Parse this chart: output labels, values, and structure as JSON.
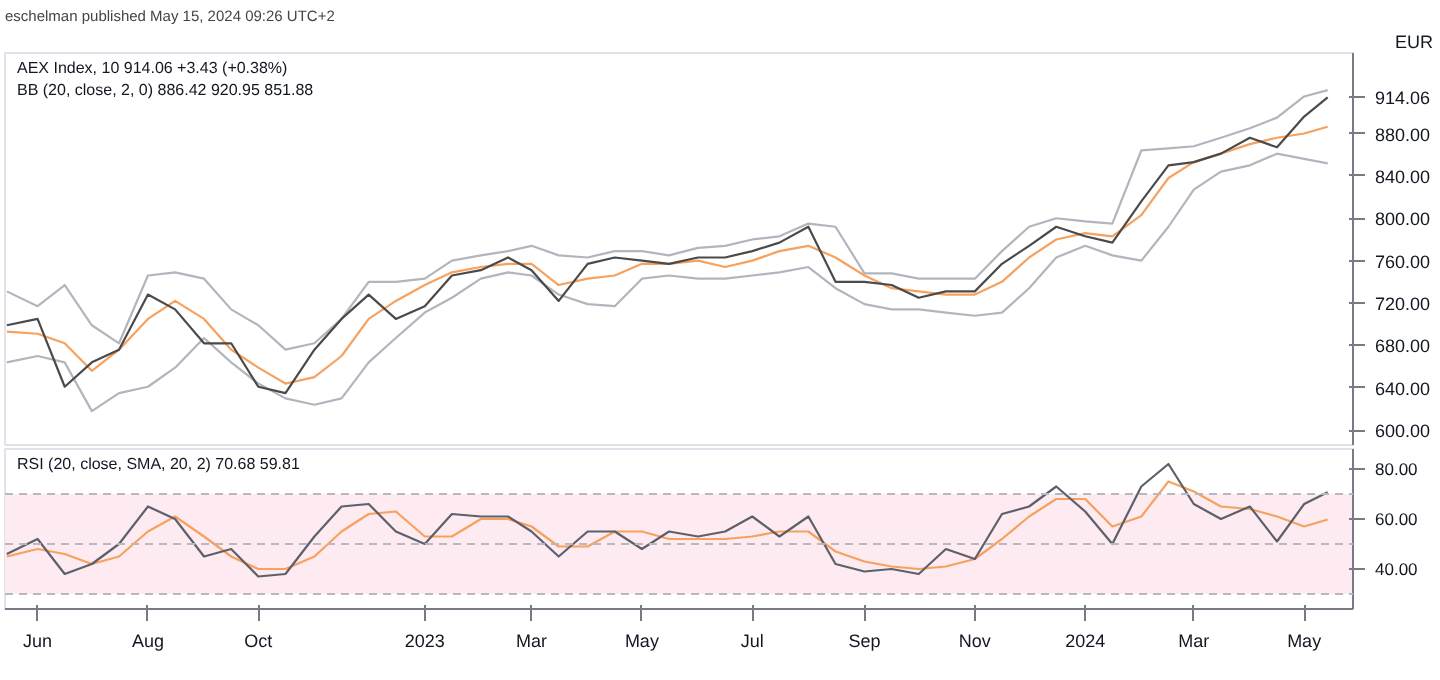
{
  "chart_data": [
    {
      "type": "line",
      "title": "eschelman published May 15, 2024 09:26 UTC+2",
      "ylabel": "EUR",
      "annotations": [
        "AEX Index, 10 914.06 +3.43 (+0.38%)",
        "BB (20, close, 2, 0) 886.42 920.95 851.88"
      ],
      "x": [
        "2022-05-15",
        "2022-06-01",
        "2022-06-16",
        "2022-07-01",
        "2022-07-16",
        "2022-08-01",
        "2022-08-16",
        "2022-09-01",
        "2022-09-16",
        "2022-10-01",
        "2022-10-16",
        "2022-11-01",
        "2022-11-16",
        "2022-12-01",
        "2022-12-16",
        "2023-01-01",
        "2023-01-16",
        "2023-02-01",
        "2023-02-16",
        "2023-03-01",
        "2023-03-16",
        "2023-04-01",
        "2023-04-16",
        "2023-05-01",
        "2023-05-16",
        "2023-06-01",
        "2023-06-16",
        "2023-07-01",
        "2023-07-16",
        "2023-08-01",
        "2023-08-16",
        "2023-09-01",
        "2023-09-16",
        "2023-10-01",
        "2023-10-16",
        "2023-11-01",
        "2023-11-16",
        "2023-12-01",
        "2023-12-16",
        "2024-01-01",
        "2024-01-16",
        "2024-02-01",
        "2024-02-16",
        "2024-03-01",
        "2024-03-16",
        "2024-04-01",
        "2024-04-16",
        "2024-05-01",
        "2024-05-14"
      ],
      "series": [
        {
          "color": "#b2b5be",
          "values": [
            731,
            717,
            737,
            699,
            682,
            746,
            749,
            743,
            714,
            699,
            676,
            682,
            705,
            740,
            740,
            743,
            760,
            765,
            769,
            774,
            765,
            763,
            769,
            769,
            765,
            772,
            774,
            780,
            783,
            795,
            792,
            748,
            748,
            743,
            743,
            743,
            769,
            792,
            800,
            797,
            795,
            864,
            866,
            868,
            876,
            885,
            895,
            915,
            920.95
          ]
        },
        {
          "color": "#b2b5be",
          "values": [
            664,
            670,
            664,
            618,
            635,
            641,
            659,
            687,
            664,
            644,
            630,
            624,
            630,
            664,
            687,
            711,
            725,
            743,
            749,
            746,
            728,
            719,
            717,
            743,
            746,
            743,
            743,
            746,
            749,
            754,
            734,
            719,
            714,
            714,
            711,
            708,
            711,
            734,
            763,
            774,
            765,
            760,
            792,
            827,
            844,
            850,
            861,
            856,
            851.88
          ]
        },
        {
          "color": "#f7a15e",
          "values": [
            693,
            691,
            682,
            656,
            676,
            705,
            722,
            705,
            676,
            659,
            644,
            650,
            670,
            705,
            722,
            737,
            749,
            754,
            757,
            757,
            737,
            743,
            746,
            757,
            757,
            760,
            754,
            760,
            769,
            774,
            763,
            746,
            734,
            731,
            728,
            728,
            740,
            763,
            780,
            786,
            783,
            803,
            838,
            853,
            861,
            870,
            876,
            880,
            886.42
          ]
        },
        {
          "color": "#4a4a4a",
          "values": [
            699,
            705,
            641,
            664,
            676,
            728,
            714,
            682,
            682,
            641,
            635,
            676,
            705,
            728,
            705,
            717,
            746,
            751,
            763,
            751,
            722,
            757,
            763,
            760,
            757,
            763,
            763,
            769,
            777,
            792,
            740,
            740,
            737,
            725,
            731,
            731,
            757,
            774,
            792,
            783,
            777,
            816,
            850,
            853,
            861,
            876,
            867,
            896,
            914.06
          ]
        }
      ],
      "xlim": [
        "2022-05-14",
        "2024-05-28"
      ],
      "ylim": [
        586,
        956
      ],
      "yticks": [
        {
          "value": 600,
          "label": "600.00"
        },
        {
          "value": 640,
          "label": "640.00"
        },
        {
          "value": 680,
          "label": "680.00"
        },
        {
          "value": 720,
          "label": "720.00"
        },
        {
          "value": 760,
          "label": "760.00"
        },
        {
          "value": 800,
          "label": "800.00"
        },
        {
          "value": 840,
          "label": "840.00"
        },
        {
          "value": 880,
          "label": "880.00"
        },
        {
          "value": 914.06,
          "label": "914.06"
        }
      ],
      "tick_labels": "y",
      "grid": false
    },
    {
      "type": "line",
      "annotations": [
        "RSI (20, close, SMA, 20, 2) 70.68 59.81"
      ],
      "x": [
        "2022-05-15",
        "2022-06-01",
        "2022-06-16",
        "2022-07-01",
        "2022-07-16",
        "2022-08-01",
        "2022-08-16",
        "2022-09-01",
        "2022-09-16",
        "2022-10-01",
        "2022-10-16",
        "2022-11-01",
        "2022-11-16",
        "2022-12-01",
        "2022-12-16",
        "2023-01-01",
        "2023-01-16",
        "2023-02-01",
        "2023-02-16",
        "2023-03-01",
        "2023-03-16",
        "2023-04-01",
        "2023-04-16",
        "2023-05-01",
        "2023-05-16",
        "2023-06-01",
        "2023-06-16",
        "2023-07-01",
        "2023-07-16",
        "2023-08-01",
        "2023-08-16",
        "2023-09-01",
        "2023-09-16",
        "2023-10-01",
        "2023-10-16",
        "2023-11-01",
        "2023-11-16",
        "2023-12-01",
        "2023-12-16",
        "2024-01-01",
        "2024-01-16",
        "2024-02-01",
        "2024-02-16",
        "2024-03-01",
        "2024-03-16",
        "2024-04-01",
        "2024-04-16",
        "2024-05-01",
        "2024-05-14"
      ],
      "series": [
        {
          "color": "#f7a15e",
          "values": [
            45,
            48,
            46,
            42,
            45,
            55,
            61,
            53,
            45,
            40,
            40,
            45,
            55,
            62,
            63,
            53,
            53,
            60,
            60,
            57,
            49,
            49,
            55,
            55,
            52,
            52,
            52,
            53,
            55,
            55,
            47,
            43,
            41,
            40,
            41,
            44,
            52,
            61,
            68,
            68,
            57,
            61,
            75,
            71,
            65,
            64,
            61,
            57,
            59.81
          ]
        },
        {
          "color": "#5d606b",
          "values": [
            46,
            52,
            38,
            42,
            50,
            65,
            60,
            45,
            48,
            37,
            38,
            53,
            65,
            66,
            55,
            50,
            62,
            61,
            61,
            55,
            45,
            55,
            55,
            48,
            55,
            53,
            55,
            61,
            53,
            61,
            42,
            39,
            40,
            38,
            48,
            44,
            62,
            65,
            73,
            63,
            50,
            73,
            82,
            66,
            60,
            65,
            51,
            66,
            70.68
          ]
        }
      ],
      "bands": [
        {
          "axis": "y",
          "from": 30,
          "to": 70,
          "color": "#fdebf1"
        }
      ],
      "ref_lines": [
        {
          "axis": "y",
          "value": 70,
          "color": "#b8b8c0",
          "line_style": "dashed"
        },
        {
          "axis": "y",
          "value": 50,
          "color": "#b8b8c0",
          "line_style": "dashed"
        },
        {
          "axis": "y",
          "value": 30,
          "color": "#b8b8c0",
          "line_style": "dashed"
        }
      ],
      "xlim": [
        "2022-05-14",
        "2024-05-28"
      ],
      "xticks": [
        {
          "value": "2022-06-01",
          "label": "Jun"
        },
        {
          "value": "2022-08-01",
          "label": "Aug"
        },
        {
          "value": "2022-10-01",
          "label": "Oct"
        },
        {
          "value": "2023-01-01",
          "label": "2023"
        },
        {
          "value": "2023-03-01",
          "label": "Mar"
        },
        {
          "value": "2023-05-01",
          "label": "May"
        },
        {
          "value": "2023-07-01",
          "label": "Jul"
        },
        {
          "value": "2023-09-01",
          "label": "Sep"
        },
        {
          "value": "2023-11-01",
          "label": "Nov"
        },
        {
          "value": "2024-01-01",
          "label": "2024"
        },
        {
          "value": "2024-03-01",
          "label": "Mar"
        },
        {
          "value": "2024-05-01",
          "label": "May"
        }
      ],
      "ylim": [
        24,
        88
      ],
      "yticks": [
        {
          "value": 40,
          "label": "40.00"
        },
        {
          "value": 60,
          "label": "60.00"
        },
        {
          "value": 80,
          "label": "80.00"
        }
      ],
      "grid": false
    }
  ]
}
